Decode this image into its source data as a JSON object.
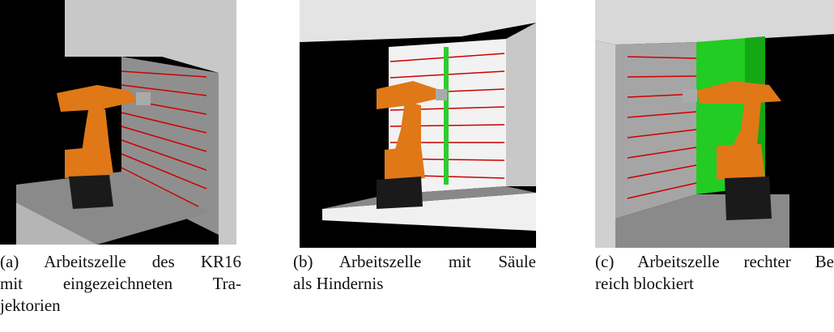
{
  "figures": [
    {
      "label": "(a)",
      "lines": [
        "Arbeitszelle des KR16",
        "mit eingezeichneten Tra-",
        "jektorien"
      ]
    },
    {
      "label": "(b)",
      "lines": [
        "Arbeitszelle mit Säule",
        "als Hindernis"
      ]
    },
    {
      "label": "(c)",
      "lines": [
        "Arbeitszelle rechter Be",
        "reich blockiert"
      ]
    }
  ]
}
